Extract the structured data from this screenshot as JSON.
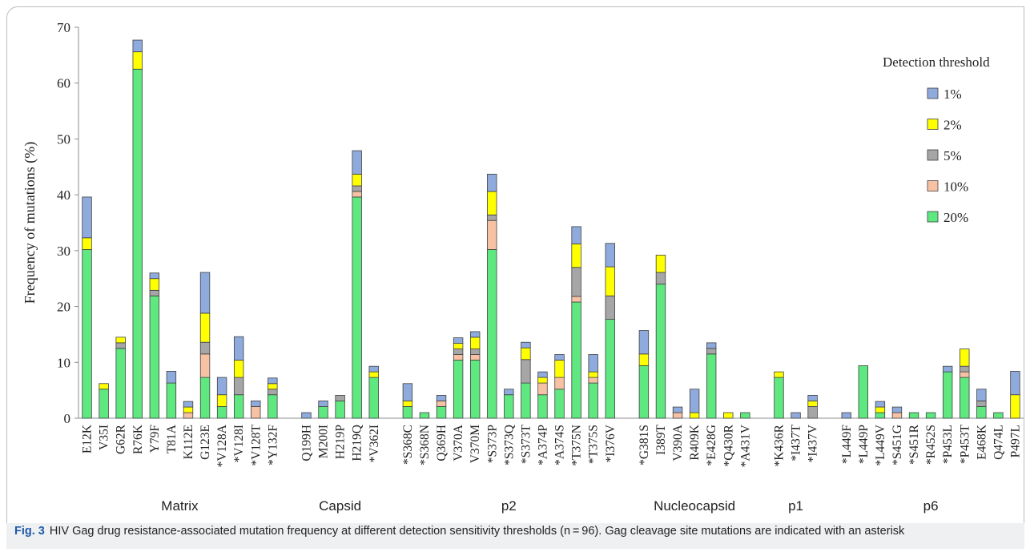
{
  "chart_data": {
    "type": "bar",
    "stacked": true,
    "ylabel": "Frequency of mutations (%)",
    "ylim": [
      0,
      70
    ],
    "yticks": [
      0,
      10,
      20,
      30,
      40,
      50,
      60,
      70
    ],
    "grid": false,
    "legend": {
      "title": "Detection threshold",
      "placement": "top-right",
      "entries": [
        "1%",
        "2%",
        "5%",
        "10%",
        "20%"
      ]
    },
    "series": [
      {
        "name": "20%",
        "color": "#5ee87f",
        "values": [
          30.2,
          5.2,
          12.5,
          62.5,
          21.9,
          6.3,
          0,
          7.3,
          2.1,
          4.2,
          0,
          4.2,
          0,
          2.1,
          3.1,
          39.6,
          7.3,
          2.1,
          1.0,
          2.1,
          10.4,
          10.4,
          30.2,
          4.2,
          6.3,
          4.2,
          5.2,
          20.8,
          6.3,
          17.7,
          9.4,
          24.0,
          0,
          0,
          11.5,
          0,
          1.0,
          7.3,
          0,
          0,
          0,
          9.4,
          1.0,
          0,
          1.0,
          1.0,
          8.3,
          7.3,
          2.1,
          1.0,
          0
        ]
      },
      {
        "name": "10%",
        "color": "#f7c2a4",
        "values": [
          0,
          0,
          0,
          0,
          0,
          0,
          1.0,
          4.2,
          0,
          0,
          2.1,
          0,
          0,
          0,
          0,
          1.0,
          0,
          0,
          0,
          1.0,
          1.0,
          1.0,
          5.2,
          0,
          0,
          2.1,
          2.1,
          1.0,
          1.0,
          0,
          0,
          0,
          1.0,
          0,
          0,
          0,
          0,
          0,
          0,
          0,
          0,
          0,
          0,
          1.0,
          0,
          0,
          0,
          1.0,
          0,
          0,
          0
        ]
      },
      {
        "name": "5%",
        "color": "#a6a6a6",
        "values": [
          0,
          0,
          1.0,
          0,
          1.0,
          0,
          0,
          2.1,
          0,
          3.1,
          0,
          1.0,
          0,
          0,
          1.0,
          1.0,
          0,
          0,
          0,
          0,
          1.0,
          1.0,
          1.0,
          0,
          4.2,
          0,
          0,
          5.2,
          0,
          4.2,
          0,
          2.1,
          0,
          0,
          1.0,
          0,
          0,
          0,
          0,
          2.1,
          0,
          0,
          0,
          0,
          0,
          0,
          0,
          1.0,
          1.0,
          0,
          0
        ]
      },
      {
        "name": "2%",
        "color": "#ffff00",
        "values": [
          2.1,
          1.0,
          1.0,
          3.1,
          2.1,
          0,
          1.0,
          5.2,
          2.1,
          3.1,
          0,
          1.0,
          0,
          0,
          0,
          2.1,
          1.0,
          1.0,
          0,
          0,
          1.0,
          2.1,
          4.2,
          0,
          2.1,
          1.0,
          3.1,
          4.2,
          1.0,
          5.2,
          2.1,
          3.1,
          0,
          1.0,
          0,
          1.0,
          0,
          1.0,
          0,
          1.0,
          0,
          0,
          1.0,
          0,
          0,
          0,
          0,
          3.1,
          0,
          0,
          4.2
        ]
      },
      {
        "name": "1%",
        "color": "#8faadc",
        "values": [
          7.3,
          0,
          0,
          2.1,
          1.0,
          2.1,
          1.0,
          7.3,
          3.1,
          4.2,
          1.0,
          1.0,
          1.0,
          1.0,
          0,
          4.2,
          1.0,
          3.1,
          0,
          1.0,
          1.0,
          1.0,
          3.1,
          1.0,
          1.0,
          1.0,
          1.0,
          3.1,
          3.1,
          4.2,
          4.2,
          0,
          1.0,
          4.2,
          1.0,
          0,
          0,
          0,
          1.0,
          1.0,
          1.0,
          0,
          1.0,
          1.0,
          0,
          0,
          1.0,
          0,
          2.1,
          0,
          4.2
        ]
      }
    ],
    "groups": [
      {
        "name": "Matrix",
        "categories": [
          "E12K",
          "V35I",
          "G62R",
          "R76K",
          "Y79F",
          "T81A",
          "K112E",
          "G123E",
          "*V128A",
          "*V128I",
          "*V128T",
          "*Y132F"
        ]
      },
      {
        "name": "Capsid",
        "categories": [
          "Q199H",
          "M200I",
          "H219P",
          "H219Q",
          "*V362I"
        ]
      },
      {
        "name": "p2",
        "categories": [
          "*S368C",
          "*S368N",
          "Q369H",
          "V370A",
          "V370M",
          "*S373P",
          "*S373Q",
          "*S373T",
          "*A374P",
          "*A374S",
          "*T375N",
          "*T375S",
          "*I376V"
        ]
      },
      {
        "name": "Nucleocapsid",
        "categories": [
          "*G381S",
          "I389T",
          "V390A",
          "R409K",
          "*E428G",
          "*Q430R",
          "*A431V"
        ]
      },
      {
        "name": "p1",
        "categories": [
          "*K436R",
          "*I437T",
          "*I437V"
        ]
      },
      {
        "name": "p6",
        "categories": [
          "*L449F",
          "*L449P",
          "*L449V",
          "*S451G",
          "*S451R",
          "*R452S",
          "*P453L",
          "*P453T",
          "E468K",
          "Q474L",
          "P497L"
        ]
      }
    ]
  },
  "caption": {
    "label": "Fig. 3",
    "text": "HIV Gag drug resistance-associated mutation frequency at different detection sensitivity thresholds (n = 96). Gag cleavage site mutations are indicated with an asterisk"
  }
}
